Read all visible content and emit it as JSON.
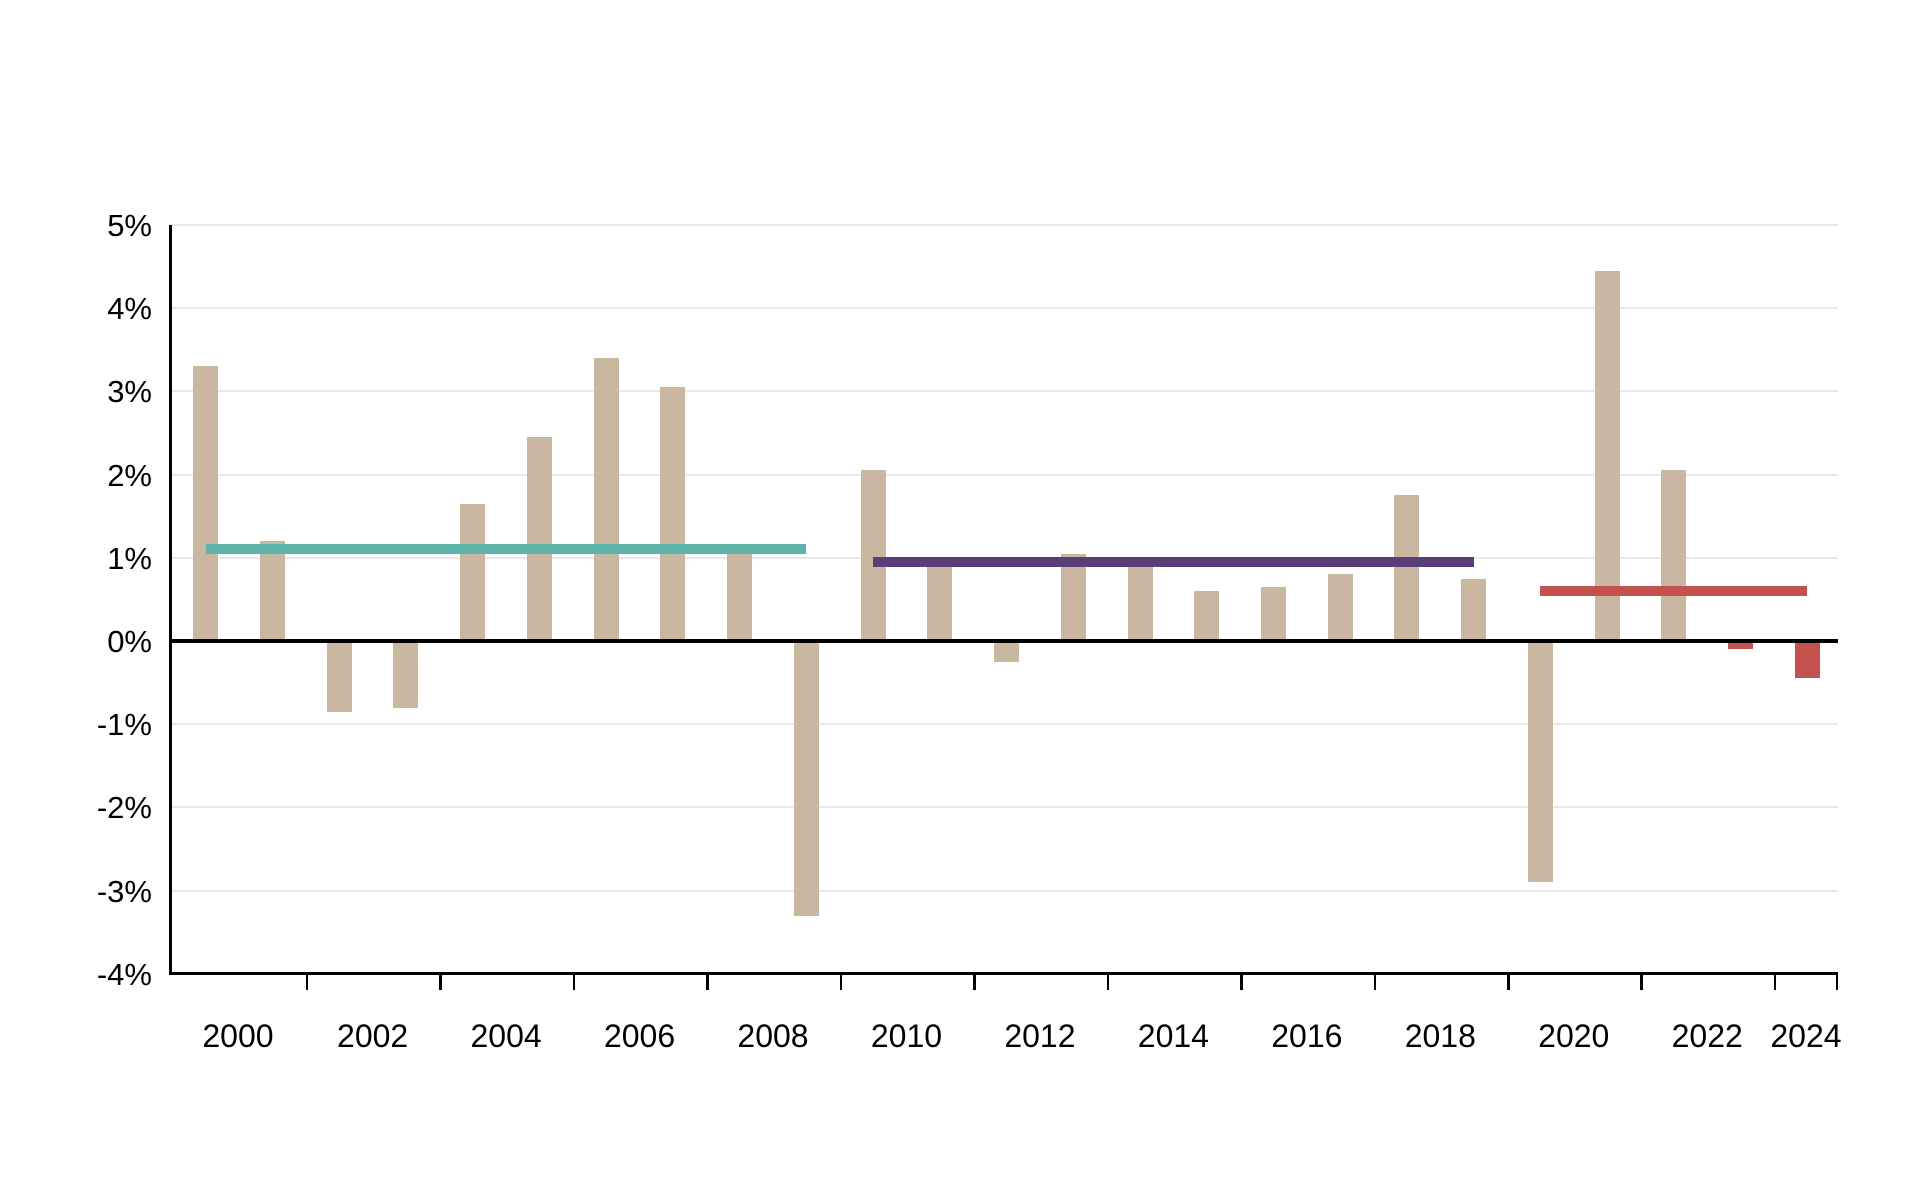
{
  "chart_data": {
    "type": "bar",
    "title": "",
    "xlabel": "",
    "ylabel": "",
    "ylim": [
      -4,
      5
    ],
    "grid": "horizontal-light",
    "legend_position": "none",
    "years": [
      2000,
      2001,
      2002,
      2003,
      2004,
      2005,
      2006,
      2007,
      2008,
      2009,
      2010,
      2011,
      2012,
      2013,
      2014,
      2015,
      2016,
      2017,
      2018,
      2019,
      2020,
      2021,
      2022,
      2023,
      2024
    ],
    "values": [
      3.3,
      1.2,
      -0.85,
      -0.8,
      1.65,
      2.45,
      3.4,
      3.05,
      1.1,
      -3.3,
      2.05,
      0.9,
      -0.25,
      1.05,
      0.9,
      0.6,
      0.65,
      0.8,
      1.75,
      0.75,
      -2.9,
      4.45,
      2.05,
      -0.1,
      -0.45
    ],
    "highlight_years": [
      2023,
      2024
    ],
    "y_tick_labels": [
      "5%",
      "4%",
      "3%",
      "2%",
      "1%",
      "0%",
      "-1%",
      "-2%",
      "-3%",
      "-4%"
    ],
    "y_tick_values": [
      5,
      4,
      3,
      2,
      1,
      0,
      -1,
      -2,
      -3,
      -4
    ],
    "x_tick_labels": [
      "2000",
      "2002",
      "2004",
      "2006",
      "2008",
      "2010",
      "2012",
      "2014",
      "2016",
      "2018",
      "2020",
      "2022",
      "2024"
    ],
    "average_lines": [
      {
        "name": "average-2000-2009",
        "start_year": 2000,
        "end_year": 2009,
        "value": 1.1,
        "color": "#5EB3AB"
      },
      {
        "name": "average-2010-2019",
        "start_year": 2010,
        "end_year": 2019,
        "value": 0.95,
        "color": "#5B3D78"
      },
      {
        "name": "average-2020-2024",
        "start_year": 2020,
        "end_year": 2024,
        "value": 0.6,
        "color": "#C5514F"
      }
    ],
    "colors": {
      "bar_default": "#C9B7A1",
      "bar_highlight": "#C5514F",
      "gridline": "#e9e9e9",
      "axis": "#000000",
      "text": "#000000",
      "background": "#ffffff"
    }
  }
}
